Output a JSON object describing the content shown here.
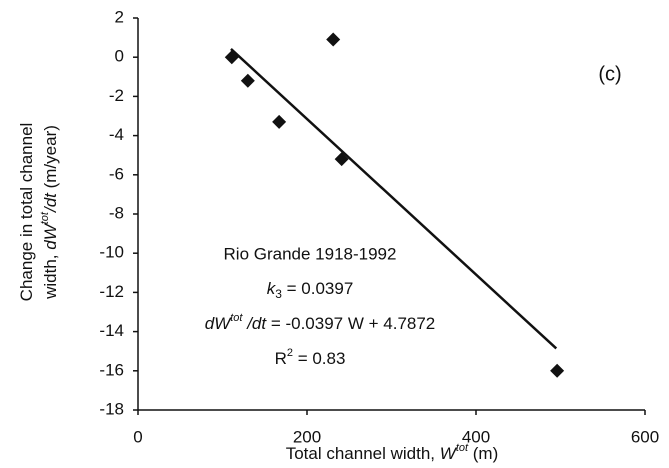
{
  "chart_data": {
    "type": "scatter",
    "x_label": [
      "Total channel width, ",
      "W",
      "tot",
      " (m)"
    ],
    "y_label": [
      [
        "Change in total channel"
      ],
      [
        "width, ",
        "dW",
        "tot",
        "/dt",
        " (m/year)"
      ]
    ],
    "series": [
      {
        "kind": "points",
        "color": "#111111",
        "x": [
          111,
          130,
          167,
          231,
          241,
          496
        ],
        "values": [
          0,
          -1.2,
          -3.3,
          0.9,
          -5.2,
          -16
        ]
      },
      {
        "kind": "line",
        "color": "#111111",
        "x": [
          110,
          495
        ],
        "values": [
          0.42,
          -14.86
        ]
      }
    ],
    "xlim": [
      0,
      600
    ],
    "xticks": [
      0,
      200,
      400,
      600
    ],
    "ylim": [
      -18,
      2
    ],
    "yticks": [
      -18,
      -16,
      -14,
      -12,
      -10,
      -8,
      -6,
      -4,
      -2,
      0,
      2
    ],
    "annotations": {
      "panel": "(c)",
      "site": "Rio Grande 1918-1992",
      "k": [
        "k",
        "3",
        " = 0.0397"
      ],
      "equation": [
        "dW",
        "tot",
        " /dt",
        " = -0.0397 W + 4.7872"
      ],
      "r2": [
        "R",
        "2",
        " = 0.83"
      ]
    }
  }
}
